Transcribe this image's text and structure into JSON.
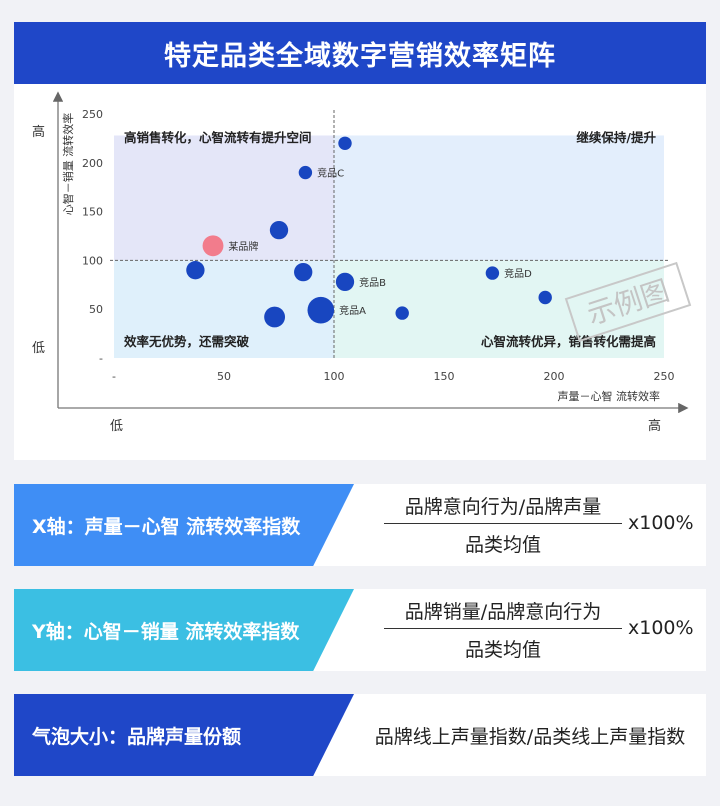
{
  "title": "特定品类全域数字营销效率矩阵",
  "watermark": "示例图",
  "axis_end_labels": {
    "y_high": "高",
    "y_low": "低",
    "x_low": "低",
    "x_high": "高"
  },
  "quadrants": {
    "top_left": "高销售转化，心智流转有提升空间",
    "top_right": "继续保持/提升",
    "bottom_left": "效率无优势，还需突破",
    "bottom_right": "心智流转优异，销售转化需提高"
  },
  "chart_data": {
    "type": "scatter",
    "title": "特定品类全域数字营销效率矩阵",
    "xlabel": "声量－心智 流转效率",
    "ylabel": "心智－销量 流转效率",
    "xlim": [
      0,
      250
    ],
    "ylim": [
      0,
      250
    ],
    "x_ticks": [
      "-",
      "50",
      "100",
      "150",
      "200",
      "250"
    ],
    "y_ticks": [
      "-",
      "50",
      "100",
      "150",
      "200",
      "250"
    ],
    "reference_x": 100,
    "reference_y": 100,
    "grid": false,
    "colors": {
      "brand": "#f27c8c",
      "competitor": "#1846c0",
      "q_top_left": "#e4e6f8",
      "q_top_right": "#e3eefc",
      "q_bottom_left": "#dff0fb",
      "q_bottom_right": "#e2f6f3"
    },
    "points": [
      {
        "x": 105,
        "y": 220,
        "size": 1,
        "label": "",
        "group": "competitor"
      },
      {
        "x": 87,
        "y": 190,
        "size": 1,
        "label": "竞品C",
        "group": "competitor"
      },
      {
        "x": 75,
        "y": 131,
        "size": 2,
        "label": "",
        "group": "competitor"
      },
      {
        "x": 45,
        "y": 115,
        "size": 3,
        "label": "某品牌",
        "group": "brand"
      },
      {
        "x": 37,
        "y": 90,
        "size": 2,
        "label": "",
        "group": "competitor"
      },
      {
        "x": 86,
        "y": 88,
        "size": 2,
        "label": "",
        "group": "competitor"
      },
      {
        "x": 105,
        "y": 78,
        "size": 2,
        "label": "竞品B",
        "group": "competitor"
      },
      {
        "x": 94,
        "y": 49,
        "size": 6,
        "label": "竞品A",
        "group": "competitor"
      },
      {
        "x": 73,
        "y": 42,
        "size": 3,
        "label": "",
        "group": "competitor"
      },
      {
        "x": 131,
        "y": 46,
        "size": 1,
        "label": "",
        "group": "competitor"
      },
      {
        "x": 172,
        "y": 87,
        "size": 1,
        "label": "竞品D",
        "group": "competitor"
      },
      {
        "x": 196,
        "y": 62,
        "size": 1,
        "label": "",
        "group": "competitor"
      }
    ]
  },
  "formulas": {
    "x_axis": {
      "label": "X轴：声量－心智 流转效率指数",
      "numerator": "品牌意向行为/品牌声量",
      "denominator": "品类均值",
      "multiplier": "x100%",
      "color": "#3f8ef5"
    },
    "y_axis": {
      "label": "Y轴：心智－销量 流转效率指数",
      "numerator": "品牌销量/品牌意向行为",
      "denominator": "品类均值",
      "multiplier": "x100%",
      "color": "#3bbfe3"
    },
    "bubble": {
      "label": "气泡大小：品牌声量份额",
      "text": "品牌线上声量指数/品类线上声量指数",
      "color": "#1f47c8"
    }
  }
}
